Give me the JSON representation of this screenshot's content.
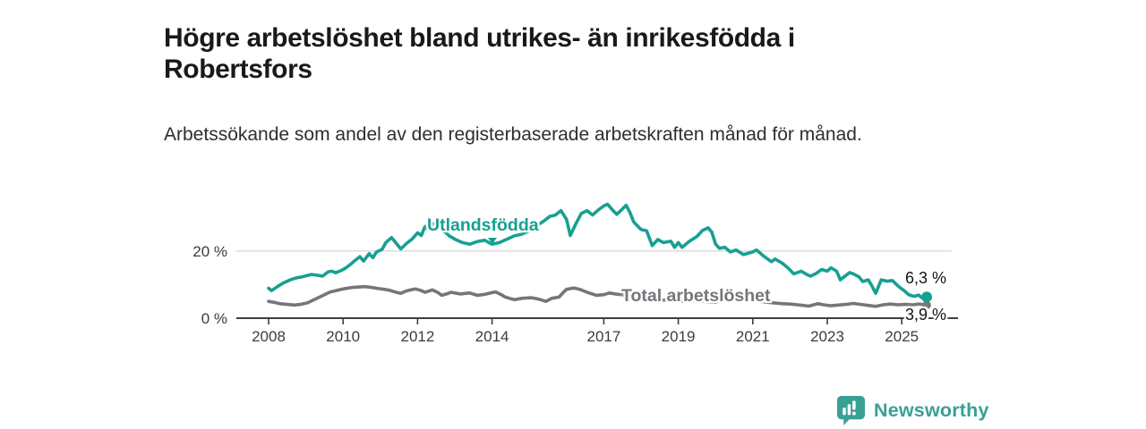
{
  "header": {
    "title": "Högre arbetslöshet bland utrikes- än inrikesfödda i Robertsfors",
    "subtitle": "Arbetssökande som andel av den registerbaserade arbetskraften månad för månad."
  },
  "chart_data": {
    "type": "line",
    "title": "Högre arbetslöshet bland utrikes- än inrikesfödda i Robertsfors",
    "subtitle": "Arbetssökande som andel av den registerbaserade arbetskraften månad för månad.",
    "unit": "%",
    "x_range": [
      2008,
      2025.67
    ],
    "ylim": [
      0,
      36
    ],
    "grid": "single horizontal gridline at 20 %",
    "legend_position": "inline labels on lines",
    "x_ticks": [
      {
        "year": 2008,
        "label": "2008"
      },
      {
        "year": 2010,
        "label": "2010"
      },
      {
        "year": 2012,
        "label": "2012"
      },
      {
        "year": 2014,
        "label": "2014"
      },
      {
        "year": 2017,
        "label": "2017"
      },
      {
        "year": 2019,
        "label": "2019"
      },
      {
        "year": 2021,
        "label": "2021"
      },
      {
        "year": 2023,
        "label": "2023"
      },
      {
        "year": 2025,
        "label": "2025"
      }
    ],
    "y_ticks": [
      {
        "value": 0,
        "label": "0 %"
      },
      {
        "value": 20,
        "label": "20 %"
      }
    ],
    "series": [
      {
        "name": "Utlandsfödda",
        "color": "#17a091",
        "end_label": "6,3 %",
        "end_value": 6.3,
        "points": [
          [
            2008.0,
            8.9
          ],
          [
            2008.08,
            8.2
          ],
          [
            2008.25,
            9.5
          ],
          [
            2008.4,
            10.5
          ],
          [
            2008.6,
            11.5
          ],
          [
            2008.75,
            12.0
          ],
          [
            2008.9,
            12.3
          ],
          [
            2009.0,
            12.6
          ],
          [
            2009.15,
            13.0
          ],
          [
            2009.3,
            12.8
          ],
          [
            2009.45,
            12.5
          ],
          [
            2009.6,
            13.8
          ],
          [
            2009.7,
            14.0
          ],
          [
            2009.8,
            13.5
          ],
          [
            2009.95,
            14.2
          ],
          [
            2010.05,
            14.8
          ],
          [
            2010.2,
            16.0
          ],
          [
            2010.3,
            17.0
          ],
          [
            2010.45,
            18.3
          ],
          [
            2010.55,
            17.0
          ],
          [
            2010.7,
            19.2
          ],
          [
            2010.8,
            18.0
          ],
          [
            2010.9,
            19.7
          ],
          [
            2011.05,
            20.5
          ],
          [
            2011.15,
            22.5
          ],
          [
            2011.3,
            24.0
          ],
          [
            2011.45,
            22.0
          ],
          [
            2011.55,
            20.6
          ],
          [
            2011.7,
            22.2
          ],
          [
            2011.85,
            23.5
          ],
          [
            2012.0,
            25.4
          ],
          [
            2012.1,
            24.6
          ],
          [
            2012.2,
            27.3
          ],
          [
            2012.3,
            26.2
          ],
          [
            2012.4,
            28.1
          ],
          [
            2012.55,
            27.0
          ],
          [
            2012.7,
            26.0
          ],
          [
            2012.85,
            24.5
          ],
          [
            2013.0,
            23.5
          ],
          [
            2013.2,
            22.5
          ],
          [
            2013.4,
            22.0
          ],
          [
            2013.6,
            22.8
          ],
          [
            2013.8,
            23.2
          ],
          [
            2014.0,
            22.0
          ],
          [
            2014.2,
            22.5
          ],
          [
            2014.4,
            23.5
          ],
          [
            2014.6,
            24.5
          ],
          [
            2014.8,
            25.0
          ],
          [
            2015.0,
            26.0
          ],
          [
            2015.2,
            27.5
          ],
          [
            2015.4,
            29.0
          ],
          [
            2015.55,
            30.3
          ],
          [
            2015.7,
            30.7
          ],
          [
            2015.85,
            32.0
          ],
          [
            2016.0,
            29.4
          ],
          [
            2016.1,
            24.6
          ],
          [
            2016.25,
            28.1
          ],
          [
            2016.4,
            31.2
          ],
          [
            2016.55,
            32.0
          ],
          [
            2016.7,
            30.7
          ],
          [
            2016.85,
            32.2
          ],
          [
            2017.0,
            33.4
          ],
          [
            2017.1,
            33.9
          ],
          [
            2017.25,
            32.0
          ],
          [
            2017.35,
            30.9
          ],
          [
            2017.5,
            32.5
          ],
          [
            2017.6,
            33.6
          ],
          [
            2017.7,
            31.5
          ],
          [
            2017.8,
            28.7
          ],
          [
            2017.9,
            27.5
          ],
          [
            2018.0,
            26.4
          ],
          [
            2018.15,
            26.0
          ],
          [
            2018.3,
            21.6
          ],
          [
            2018.45,
            23.4
          ],
          [
            2018.6,
            22.5
          ],
          [
            2018.8,
            22.9
          ],
          [
            2018.9,
            21.1
          ],
          [
            2019.0,
            22.5
          ],
          [
            2019.1,
            21.1
          ],
          [
            2019.3,
            22.9
          ],
          [
            2019.5,
            24.3
          ],
          [
            2019.65,
            26.1
          ],
          [
            2019.8,
            26.9
          ],
          [
            2019.9,
            25.6
          ],
          [
            2020.0,
            22.1
          ],
          [
            2020.1,
            20.8
          ],
          [
            2020.25,
            21.1
          ],
          [
            2020.4,
            19.7
          ],
          [
            2020.55,
            20.3
          ],
          [
            2020.75,
            18.9
          ],
          [
            2021.0,
            19.7
          ],
          [
            2021.1,
            20.3
          ],
          [
            2021.3,
            18.4
          ],
          [
            2021.5,
            16.8
          ],
          [
            2021.6,
            17.6
          ],
          [
            2021.8,
            16.3
          ],
          [
            2021.95,
            14.9
          ],
          [
            2022.1,
            13.2
          ],
          [
            2022.3,
            14.0
          ],
          [
            2022.45,
            13.0
          ],
          [
            2022.55,
            12.5
          ],
          [
            2022.7,
            13.3
          ],
          [
            2022.85,
            14.5
          ],
          [
            2023.0,
            14.0
          ],
          [
            2023.1,
            15.0
          ],
          [
            2023.25,
            14.0
          ],
          [
            2023.35,
            11.4
          ],
          [
            2023.45,
            12.3
          ],
          [
            2023.6,
            13.6
          ],
          [
            2023.7,
            13.2
          ],
          [
            2023.85,
            12.3
          ],
          [
            2023.95,
            10.9
          ],
          [
            2024.1,
            11.4
          ],
          [
            2024.2,
            9.6
          ],
          [
            2024.3,
            7.4
          ],
          [
            2024.45,
            11.4
          ],
          [
            2024.6,
            11.0
          ],
          [
            2024.75,
            11.2
          ],
          [
            2024.9,
            9.6
          ],
          [
            2025.05,
            8.3
          ],
          [
            2025.2,
            6.9
          ],
          [
            2025.35,
            6.5
          ],
          [
            2025.45,
            6.9
          ],
          [
            2025.55,
            6.0
          ],
          [
            2025.67,
            6.3
          ]
        ]
      },
      {
        "name": "Total arbetslöshet",
        "color": "#75757b",
        "end_label": "3,9 %",
        "end_value": 3.9,
        "points": [
          [
            2008.0,
            5.0
          ],
          [
            2008.15,
            4.7
          ],
          [
            2008.3,
            4.3
          ],
          [
            2008.5,
            4.1
          ],
          [
            2008.7,
            3.9
          ],
          [
            2008.85,
            4.1
          ],
          [
            2009.05,
            4.6
          ],
          [
            2009.2,
            5.4
          ],
          [
            2009.35,
            6.2
          ],
          [
            2009.5,
            7.0
          ],
          [
            2009.65,
            7.8
          ],
          [
            2009.85,
            8.3
          ],
          [
            2010.0,
            8.7
          ],
          [
            2010.15,
            9.0
          ],
          [
            2010.3,
            9.2
          ],
          [
            2010.6,
            9.4
          ],
          [
            2010.8,
            9.1
          ],
          [
            2010.95,
            8.8
          ],
          [
            2011.1,
            8.6
          ],
          [
            2011.25,
            8.3
          ],
          [
            2011.4,
            7.8
          ],
          [
            2011.55,
            7.4
          ],
          [
            2011.7,
            8.1
          ],
          [
            2011.85,
            8.5
          ],
          [
            2011.95,
            8.7
          ],
          [
            2012.1,
            8.2
          ],
          [
            2012.2,
            7.7
          ],
          [
            2012.4,
            8.4
          ],
          [
            2012.55,
            7.6
          ],
          [
            2012.65,
            6.8
          ],
          [
            2012.8,
            7.3
          ],
          [
            2012.9,
            7.7
          ],
          [
            2013.05,
            7.4
          ],
          [
            2013.15,
            7.2
          ],
          [
            2013.3,
            7.4
          ],
          [
            2013.4,
            7.5
          ],
          [
            2013.6,
            6.8
          ],
          [
            2013.75,
            7.0
          ],
          [
            2013.85,
            7.2
          ],
          [
            2014.0,
            7.6
          ],
          [
            2014.1,
            7.8
          ],
          [
            2014.25,
            7.0
          ],
          [
            2014.35,
            6.3
          ],
          [
            2014.5,
            5.8
          ],
          [
            2014.6,
            5.5
          ],
          [
            2014.8,
            5.9
          ],
          [
            2015.05,
            6.1
          ],
          [
            2015.2,
            5.8
          ],
          [
            2015.3,
            5.5
          ],
          [
            2015.45,
            5.0
          ],
          [
            2015.6,
            5.9
          ],
          [
            2015.8,
            6.3
          ],
          [
            2015.9,
            7.5
          ],
          [
            2016.0,
            8.6
          ],
          [
            2016.2,
            9.0
          ],
          [
            2016.35,
            8.6
          ],
          [
            2016.55,
            7.7
          ],
          [
            2016.8,
            6.8
          ],
          [
            2017.0,
            7.0
          ],
          [
            2017.15,
            7.5
          ],
          [
            2017.3,
            7.2
          ],
          [
            2017.6,
            6.8
          ],
          [
            2017.9,
            6.3
          ],
          [
            2018.2,
            5.8
          ],
          [
            2018.5,
            5.5
          ],
          [
            2018.8,
            5.2
          ],
          [
            2019.1,
            5.0
          ],
          [
            2019.4,
            5.2
          ],
          [
            2019.7,
            5.0
          ],
          [
            2020.0,
            4.8
          ],
          [
            2020.3,
            5.6
          ],
          [
            2020.6,
            5.8
          ],
          [
            2020.9,
            5.4
          ],
          [
            2021.2,
            5.0
          ],
          [
            2021.5,
            4.6
          ],
          [
            2021.8,
            4.3
          ],
          [
            2022.0,
            4.2
          ],
          [
            2022.2,
            4.0
          ],
          [
            2022.35,
            3.8
          ],
          [
            2022.5,
            3.6
          ],
          [
            2022.75,
            4.3
          ],
          [
            2022.9,
            4.0
          ],
          [
            2023.1,
            3.7
          ],
          [
            2023.3,
            3.9
          ],
          [
            2023.5,
            4.1
          ],
          [
            2023.7,
            4.4
          ],
          [
            2023.9,
            4.1
          ],
          [
            2024.1,
            3.8
          ],
          [
            2024.3,
            3.5
          ],
          [
            2024.5,
            4.0
          ],
          [
            2024.7,
            4.2
          ],
          [
            2024.9,
            4.0
          ],
          [
            2025.1,
            4.1
          ],
          [
            2025.3,
            4.0
          ],
          [
            2025.45,
            4.2
          ],
          [
            2025.67,
            3.9
          ]
        ]
      }
    ],
    "colors": {
      "accent_teal": "#17a091",
      "neutral_gray": "#75757b",
      "axis": "#3f3f3f",
      "gridline": "#d9d9d9",
      "text": "#191919"
    }
  },
  "footer": {
    "brand": "Newsworthy"
  }
}
